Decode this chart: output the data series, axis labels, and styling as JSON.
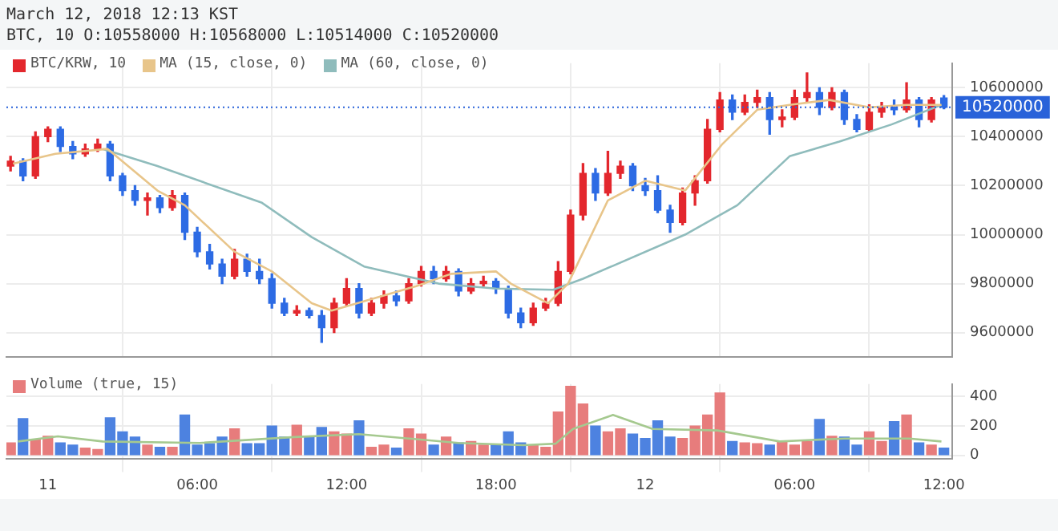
{
  "chart_data": [
    {
      "type": "candlestick",
      "title": "March 12, 2018 12:13 KST",
      "subtitle": "BTC, 10 O:10558000 H:10568000 L:10514000 C:10520000",
      "xlim": [
        "2018-03-10T22:20",
        "2018-03-12T12:20"
      ],
      "xticks": [
        {
          "value": "2018-03-11",
          "label": null
        },
        {
          "value": "2018-03-11T06:00",
          "label": null
        },
        {
          "value": "2018-03-11T12:00",
          "label": null
        },
        {
          "value": "2018-03-11T18:00",
          "label": null
        },
        {
          "value": "2018-03-12",
          "label": null
        },
        {
          "value": "2018-03-12T06:00",
          "label": null
        },
        {
          "value": "2018-03-12T12:00",
          "label": null
        }
      ],
      "x": [
        "2018-03-10T22:30",
        "2018-03-10T23:00",
        "2018-03-10T23:30",
        "2018-03-11T00:00",
        "2018-03-11T00:30",
        "2018-03-11T01:00",
        "2018-03-11T01:30",
        "2018-03-11T02:00",
        "2018-03-11T02:30",
        "2018-03-11T03:00",
        "2018-03-11T03:30",
        "2018-03-11T04:00",
        "2018-03-11T04:30",
        "2018-03-11T05:00",
        "2018-03-11T05:30",
        "2018-03-11T06:00",
        "2018-03-11T06:30",
        "2018-03-11T07:00",
        "2018-03-11T07:30",
        "2018-03-11T08:00",
        "2018-03-11T08:30",
        "2018-03-11T09:00",
        "2018-03-11T09:30",
        "2018-03-11T10:00",
        "2018-03-11T10:30",
        "2018-03-11T11:00",
        "2018-03-11T11:30",
        "2018-03-11T12:00",
        "2018-03-11T12:30",
        "2018-03-11T13:00",
        "2018-03-11T13:30",
        "2018-03-11T14:00",
        "2018-03-11T14:30",
        "2018-03-11T15:00",
        "2018-03-11T15:30",
        "2018-03-11T16:00",
        "2018-03-11T16:30",
        "2018-03-11T17:00",
        "2018-03-11T17:30",
        "2018-03-11T18:00",
        "2018-03-11T18:30",
        "2018-03-11T19:00",
        "2018-03-11T19:30",
        "2018-03-11T20:00",
        "2018-03-11T20:30",
        "2018-03-11T21:00",
        "2018-03-11T21:30",
        "2018-03-11T22:00",
        "2018-03-11T22:30",
        "2018-03-11T23:00",
        "2018-03-11T23:30",
        "2018-03-12T00:00",
        "2018-03-12T00:30",
        "2018-03-12T01:00",
        "2018-03-12T01:30",
        "2018-03-12T02:00",
        "2018-03-12T02:30",
        "2018-03-12T03:00",
        "2018-03-12T03:30",
        "2018-03-12T04:00",
        "2018-03-12T04:30",
        "2018-03-12T05:00",
        "2018-03-12T05:30",
        "2018-03-12T06:00",
        "2018-03-12T06:30",
        "2018-03-12T07:00",
        "2018-03-12T07:30",
        "2018-03-12T08:00",
        "2018-03-12T08:30",
        "2018-03-12T09:00",
        "2018-03-12T09:30",
        "2018-03-12T10:00",
        "2018-03-12T10:30",
        "2018-03-12T11:00",
        "2018-03-12T11:30",
        "2018-03-12T12:00"
      ],
      "ylim": [
        9500000,
        10700000
      ],
      "yticks": [
        9600000,
        9800000,
        10000000,
        10200000,
        10400000,
        10600000
      ],
      "tick_labels": "y",
      "grid": true,
      "legend": "top left",
      "marker": "none",
      "ref_lines": [
        {
          "axis": "y",
          "value": 10520000,
          "label": "10520000",
          "color": "#2962d9",
          "line_style": "dotted"
        }
      ],
      "series": [
        {
          "name": "BTC/KRW, 10",
          "ohlc": [
            [
              10280000,
              10320000,
              10260000,
              10300000
            ],
            [
              10300000,
              10310000,
              10220000,
              10240000
            ],
            [
              10240000,
              10420000,
              10230000,
              10400000
            ],
            [
              10400000,
              10440000,
              10380000,
              10430000
            ],
            [
              10430000,
              10440000,
              10340000,
              10360000
            ],
            [
              10360000,
              10380000,
              10310000,
              10330000
            ],
            [
              10330000,
              10370000,
              10320000,
              10350000
            ],
            [
              10350000,
              10390000,
              10340000,
              10370000
            ],
            [
              10370000,
              10380000,
              10220000,
              10240000
            ],
            [
              10240000,
              10250000,
              10160000,
              10180000
            ],
            [
              10180000,
              10200000,
              10120000,
              10140000
            ],
            [
              10140000,
              10170000,
              10080000,
              10150000
            ],
            [
              10150000,
              10160000,
              10090000,
              10110000
            ],
            [
              10110000,
              10180000,
              10100000,
              10160000
            ],
            [
              10160000,
              10170000,
              9980000,
              10010000
            ],
            [
              10010000,
              10030000,
              9910000,
              9930000
            ],
            [
              9930000,
              9960000,
              9860000,
              9880000
            ],
            [
              9880000,
              9900000,
              9800000,
              9830000
            ],
            [
              9830000,
              9940000,
              9820000,
              9900000
            ],
            [
              9900000,
              9920000,
              9830000,
              9850000
            ],
            [
              9850000,
              9900000,
              9800000,
              9820000
            ],
            [
              9820000,
              9840000,
              9700000,
              9720000
            ],
            [
              9720000,
              9740000,
              9670000,
              9680000
            ],
            [
              9680000,
              9710000,
              9670000,
              9690000
            ],
            [
              9690000,
              9700000,
              9660000,
              9670000
            ],
            [
              9670000,
              9690000,
              9560000,
              9620000
            ],
            [
              9620000,
              9740000,
              9600000,
              9720000
            ],
            [
              9720000,
              9820000,
              9710000,
              9780000
            ],
            [
              9780000,
              9800000,
              9660000,
              9680000
            ],
            [
              9680000,
              9740000,
              9670000,
              9720000
            ],
            [
              9720000,
              9770000,
              9700000,
              9750000
            ],
            [
              9750000,
              9770000,
              9710000,
              9730000
            ],
            [
              9730000,
              9820000,
              9720000,
              9800000
            ],
            [
              9800000,
              9870000,
              9790000,
              9850000
            ],
            [
              9850000,
              9870000,
              9800000,
              9820000
            ],
            [
              9820000,
              9870000,
              9810000,
              9850000
            ],
            [
              9850000,
              9860000,
              9750000,
              9770000
            ],
            [
              9770000,
              9820000,
              9760000,
              9800000
            ],
            [
              9800000,
              9830000,
              9790000,
              9810000
            ],
            [
              9810000,
              9820000,
              9760000,
              9780000
            ],
            [
              9780000,
              9790000,
              9660000,
              9680000
            ],
            [
              9680000,
              9700000,
              9620000,
              9640000
            ],
            [
              9640000,
              9720000,
              9630000,
              9700000
            ],
            [
              9700000,
              9740000,
              9690000,
              9720000
            ],
            [
              9720000,
              9890000,
              9710000,
              9850000
            ],
            [
              9850000,
              10100000,
              9840000,
              10080000
            ],
            [
              10080000,
              10290000,
              10060000,
              10250000
            ],
            [
              10250000,
              10270000,
              10140000,
              10170000
            ],
            [
              10170000,
              10340000,
              10160000,
              10250000
            ],
            [
              10250000,
              10300000,
              10230000,
              10280000
            ],
            [
              10280000,
              10290000,
              10180000,
              10200000
            ],
            [
              10200000,
              10230000,
              10160000,
              10180000
            ],
            [
              10180000,
              10240000,
              10090000,
              10100000
            ],
            [
              10100000,
              10120000,
              10010000,
              10050000
            ],
            [
              10050000,
              10190000,
              10040000,
              10170000
            ],
            [
              10170000,
              10240000,
              10120000,
              10220000
            ],
            [
              10220000,
              10470000,
              10210000,
              10430000
            ],
            [
              10430000,
              10580000,
              10420000,
              10550000
            ],
            [
              10550000,
              10570000,
              10470000,
              10500000
            ],
            [
              10500000,
              10570000,
              10490000,
              10540000
            ],
            [
              10540000,
              10590000,
              10520000,
              10560000
            ],
            [
              10560000,
              10580000,
              10410000,
              10470000
            ],
            [
              10470000,
              10510000,
              10440000,
              10480000
            ],
            [
              10480000,
              10590000,
              10470000,
              10560000
            ],
            [
              10560000,
              10660000,
              10540000,
              10580000
            ],
            [
              10580000,
              10600000,
              10490000,
              10520000
            ],
            [
              10520000,
              10600000,
              10510000,
              10580000
            ],
            [
              10580000,
              10590000,
              10450000,
              10470000
            ],
            [
              10470000,
              10490000,
              10420000,
              10430000
            ],
            [
              10430000,
              10530000,
              10420000,
              10500000
            ],
            [
              10500000,
              10540000,
              10480000,
              10520000
            ],
            [
              10520000,
              10550000,
              10490000,
              10510000
            ],
            [
              10510000,
              10620000,
              10500000,
              10550000
            ],
            [
              10550000,
              10560000,
              10440000,
              10470000
            ],
            [
              10470000,
              10560000,
              10460000,
              10550000
            ],
            [
              10558000,
              10568000,
              10514000,
              10520000
            ]
          ],
          "colors": [
            "#e3272d",
            "#2d6be4",
            "#e3272d",
            "#e3272d",
            "#2d6be4",
            "#2d6be4",
            "#e3272d",
            "#e3272d",
            "#2d6be4",
            "#2d6be4",
            "#2d6be4",
            "#e3272d",
            "#2d6be4",
            "#e3272d",
            "#2d6be4",
            "#2d6be4",
            "#2d6be4",
            "#2d6be4",
            "#e3272d",
            "#2d6be4",
            "#2d6be4",
            "#2d6be4",
            "#2d6be4",
            "#e3272d",
            "#2d6be4",
            "#2d6be4",
            "#e3272d",
            "#e3272d",
            "#2d6be4",
            "#e3272d",
            "#e3272d",
            "#2d6be4",
            "#e3272d",
            "#e3272d",
            "#2d6be4",
            "#e3272d",
            "#2d6be4",
            "#e3272d",
            "#e3272d",
            "#2d6be4",
            "#2d6be4",
            "#2d6be4",
            "#e3272d",
            "#e3272d",
            "#e3272d",
            "#e3272d",
            "#e3272d",
            "#2d6be4",
            "#e3272d",
            "#e3272d",
            "#2d6be4",
            "#2d6be4",
            "#2d6be4",
            "#2d6be4",
            "#e3272d",
            "#e3272d",
            "#e3272d",
            "#e3272d",
            "#2d6be4",
            "#e3272d",
            "#e3272d",
            "#2d6be4",
            "#e3272d",
            "#e3272d",
            "#e3272d",
            "#2d6be4",
            "#e3272d",
            "#2d6be4",
            "#2d6be4",
            "#e3272d",
            "#e3272d",
            "#2d6be4",
            "#e3272d",
            "#2d6be4",
            "#e3272d",
            "#2d6be4"
          ]
        },
        {
          "name": "MA (15, close, 0)",
          "type": "line",
          "color": "#e8c58a",
          "x": [
            "2018-03-10T22:36",
            "2018-03-11T00:18",
            "2018-03-11T02:24",
            "2018-03-11T04:24",
            "2018-03-11T05:30",
            "2018-03-11T07:30",
            "2018-03-11T09:00",
            "2018-03-11T10:36",
            "2018-03-11T11:24",
            "2018-03-11T13:06",
            "2018-03-11T14:48",
            "2018-03-11T16:12",
            "2018-03-11T18:00",
            "2018-03-11T18:36",
            "2018-03-11T20:06",
            "2018-03-11T20:54",
            "2018-03-11T22:30",
            "2018-03-12T00:00",
            "2018-03-12T01:36",
            "2018-03-12T03:06",
            "2018-03-12T04:30",
            "2018-03-12T05:48",
            "2018-03-12T07:24",
            "2018-03-12T09:00",
            "2018-03-12T10:30",
            "2018-03-12T11:54"
          ],
          "values": [
            10290000,
            10330000,
            10350000,
            10180000,
            10120000,
            9930000,
            9850000,
            9720000,
            9690000,
            9740000,
            9790000,
            9840000,
            9850000,
            9800000,
            9720000,
            9800000,
            10140000,
            10220000,
            10180000,
            10370000,
            10510000,
            10530000,
            10550000,
            10520000,
            10530000,
            10530000
          ]
        },
        {
          "name": "MA (60, close, 0)",
          "type": "line",
          "color": "#8fbcbc",
          "x": [
            "2018-03-11T02:12",
            "2018-03-11T04:24",
            "2018-03-11T08:36",
            "2018-03-11T10:36",
            "2018-03-11T12:42",
            "2018-03-11T15:42",
            "2018-03-11T18:00",
            "2018-03-11T20:18",
            "2018-03-11T21:30",
            "2018-03-12T01:36",
            "2018-03-12T03:42",
            "2018-03-12T05:48",
            "2018-03-12T07:48",
            "2018-03-12T09:54",
            "2018-03-12T11:54"
          ],
          "values": [
            10350000,
            10280000,
            10130000,
            9990000,
            9870000,
            9800000,
            9780000,
            9775000,
            9820000,
            10000000,
            10120000,
            10320000,
            10380000,
            10450000,
            10530000
          ]
        }
      ]
    },
    {
      "type": "bar",
      "xlim": [
        "2018-03-10T22:20",
        "2018-03-12T12:20"
      ],
      "xticks": [
        {
          "value": "2018-03-11",
          "label": "11"
        },
        {
          "value": "2018-03-11T06:00",
          "label": "06:00"
        },
        {
          "value": "2018-03-11T12:00",
          "label": "12:00"
        },
        {
          "value": "2018-03-11T18:00",
          "label": "18:00"
        },
        {
          "value": "2018-03-12",
          "label": "12"
        },
        {
          "value": "2018-03-12T06:00",
          "label": "06:00"
        },
        {
          "value": "2018-03-12T12:00",
          "label": "12:00"
        }
      ],
      "x": [
        "2018-03-10T22:30",
        "2018-03-10T23:00",
        "2018-03-10T23:30",
        "2018-03-11T00:00",
        "2018-03-11T00:30",
        "2018-03-11T01:00",
        "2018-03-11T01:30",
        "2018-03-11T02:00",
        "2018-03-11T02:30",
        "2018-03-11T03:00",
        "2018-03-11T03:30",
        "2018-03-11T04:00",
        "2018-03-11T04:30",
        "2018-03-11T05:00",
        "2018-03-11T05:30",
        "2018-03-11T06:00",
        "2018-03-11T06:30",
        "2018-03-11T07:00",
        "2018-03-11T07:30",
        "2018-03-11T08:00",
        "2018-03-11T08:30",
        "2018-03-11T09:00",
        "2018-03-11T09:30",
        "2018-03-11T10:00",
        "2018-03-11T10:30",
        "2018-03-11T11:00",
        "2018-03-11T11:30",
        "2018-03-11T12:00",
        "2018-03-11T12:30",
        "2018-03-11T13:00",
        "2018-03-11T13:30",
        "2018-03-11T14:00",
        "2018-03-11T14:30",
        "2018-03-11T15:00",
        "2018-03-11T15:30",
        "2018-03-11T16:00",
        "2018-03-11T16:30",
        "2018-03-11T17:00",
        "2018-03-11T17:30",
        "2018-03-11T18:00",
        "2018-03-11T18:30",
        "2018-03-11T19:00",
        "2018-03-11T19:30",
        "2018-03-11T20:00",
        "2018-03-11T20:30",
        "2018-03-11T21:00",
        "2018-03-11T21:30",
        "2018-03-11T22:00",
        "2018-03-11T22:30",
        "2018-03-11T23:00",
        "2018-03-11T23:30",
        "2018-03-12T00:00",
        "2018-03-12T00:30",
        "2018-03-12T01:00",
        "2018-03-12T01:30",
        "2018-03-12T02:00",
        "2018-03-12T02:30",
        "2018-03-12T03:00",
        "2018-03-12T03:30",
        "2018-03-12T04:00",
        "2018-03-12T04:30",
        "2018-03-12T05:00",
        "2018-03-12T05:30",
        "2018-03-12T06:00",
        "2018-03-12T06:30",
        "2018-03-12T07:00",
        "2018-03-12T07:30",
        "2018-03-12T08:00",
        "2018-03-12T08:30",
        "2018-03-12T09:00",
        "2018-03-12T09:30",
        "2018-03-12T10:00",
        "2018-03-12T10:30",
        "2018-03-12T11:00",
        "2018-03-12T11:30",
        "2018-03-12T12:00"
      ],
      "ylim": [
        -25,
        485
      ],
      "yticks": [
        0,
        200,
        400
      ],
      "grid": true,
      "legend": "top left",
      "marker": "none",
      "series": [
        {
          "name": "Volume (true, 15)",
          "values": [
            85,
            250,
            105,
            130,
            85,
            70,
            50,
            40,
            255,
            160,
            125,
            70,
            55,
            55,
            275,
            70,
            80,
            125,
            180,
            80,
            80,
            200,
            125,
            205,
            125,
            190,
            160,
            145,
            235,
            55,
            70,
            50,
            180,
            145,
            70,
            125,
            85,
            95,
            70,
            70,
            160,
            85,
            70,
            55,
            295,
            470,
            350,
            200,
            160,
            180,
            145,
            115,
            235,
            125,
            115,
            200,
            275,
            425,
            95,
            85,
            80,
            70,
            95,
            70,
            95,
            245,
            130,
            125,
            70,
            160,
            95,
            230,
            275,
            85,
            70,
            50
          ],
          "colors": [
            "#e77c7c",
            "#4d82e0",
            "#e77c7c",
            "#e77c7c",
            "#4d82e0",
            "#4d82e0",
            "#e77c7c",
            "#e77c7c",
            "#4d82e0",
            "#4d82e0",
            "#4d82e0",
            "#e77c7c",
            "#4d82e0",
            "#e77c7c",
            "#4d82e0",
            "#4d82e0",
            "#4d82e0",
            "#4d82e0",
            "#e77c7c",
            "#4d82e0",
            "#4d82e0",
            "#4d82e0",
            "#4d82e0",
            "#e77c7c",
            "#4d82e0",
            "#4d82e0",
            "#e77c7c",
            "#e77c7c",
            "#4d82e0",
            "#e77c7c",
            "#e77c7c",
            "#4d82e0",
            "#e77c7c",
            "#e77c7c",
            "#4d82e0",
            "#e77c7c",
            "#4d82e0",
            "#e77c7c",
            "#e77c7c",
            "#4d82e0",
            "#4d82e0",
            "#4d82e0",
            "#e77c7c",
            "#e77c7c",
            "#e77c7c",
            "#e77c7c",
            "#e77c7c",
            "#4d82e0",
            "#e77c7c",
            "#e77c7c",
            "#4d82e0",
            "#4d82e0",
            "#4d82e0",
            "#4d82e0",
            "#e77c7c",
            "#e77c7c",
            "#e77c7c",
            "#e77c7c",
            "#4d82e0",
            "#e77c7c",
            "#e77c7c",
            "#4d82e0",
            "#e77c7c",
            "#e77c7c",
            "#e77c7c",
            "#4d82e0",
            "#e77c7c",
            "#4d82e0",
            "#4d82e0",
            "#e77c7c",
            "#e77c7c",
            "#4d82e0",
            "#e77c7c",
            "#4d82e0",
            "#e77c7c",
            "#4d82e0"
          ]
        },
        {
          "type": "line",
          "color": "#a5c98f",
          "x": [
            "2018-03-10T22:48",
            "2018-03-11T00:24",
            "2018-03-11T02:12",
            "2018-03-11T06:06",
            "2018-03-11T09:54",
            "2018-03-11T12:30",
            "2018-03-11T16:30",
            "2018-03-11T19:06",
            "2018-03-11T20:24",
            "2018-03-11T21:06",
            "2018-03-11T22:42",
            "2018-03-12T00:18",
            "2018-03-12T02:54",
            "2018-03-12T05:24",
            "2018-03-12T08:00",
            "2018-03-12T10:36",
            "2018-03-12T11:54"
          ],
          "values": [
            95,
            130,
            95,
            85,
            125,
            145,
            85,
            70,
            80,
            180,
            275,
            180,
            170,
            95,
            115,
            115,
            95
          ]
        }
      ]
    }
  ]
}
